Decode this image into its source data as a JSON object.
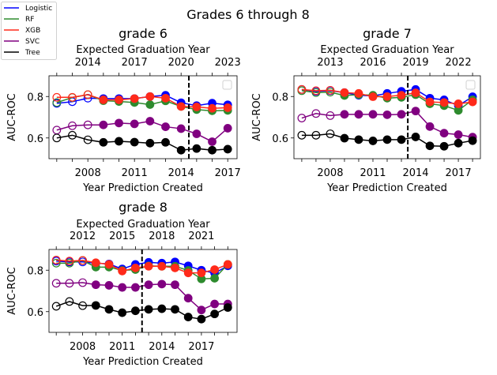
{
  "chart_data": {
    "type": "line",
    "title": "Grades 6 through 8",
    "legend": {
      "placement": "top-left",
      "entries": [
        "Logistic",
        "RF",
        "XGB",
        "SVC",
        "Tree"
      ]
    },
    "colors": {
      "Logistic": "#0000ff",
      "RF": "#2e8b2e",
      "XGB": "#ff2a1a",
      "SVC": "#800080",
      "Tree": "#000000"
    },
    "grid": false,
    "panels": [
      {
        "title": "grade 6",
        "xlabel": "Year Prediction Created",
        "ylabel": "AUC-ROC",
        "top_xlabel": "Expected Graduation Year",
        "top_offset_years": 6,
        "xticks": [
          "2008",
          "2011",
          "2014",
          "2017"
        ],
        "top_xticks": [
          "2014",
          "2017",
          "2020",
          "2023"
        ],
        "yticks": [
          "0.6",
          "0.8"
        ],
        "xlim": [
          2005.5,
          2017.6
        ],
        "ylim": [
          0.5,
          0.9
        ],
        "cutoff_line_x": 2014.5,
        "open_marker_until": 2008,
        "empty_legend_box": true,
        "x": [
          2006,
          2007,
          2008,
          2009,
          2010,
          2011,
          2012,
          2013,
          2014,
          2015,
          2016,
          2017
        ],
        "series": [
          {
            "name": "Logistic",
            "values": [
              0.767,
              0.775,
              0.792,
              0.79,
              0.79,
              0.79,
              0.8,
              0.806,
              0.77,
              0.756,
              0.768,
              0.76
            ]
          },
          {
            "name": "RF",
            "values": [
              0.771,
              0.795,
              0.809,
              0.78,
              0.776,
              0.771,
              0.761,
              0.779,
              0.752,
              0.737,
              0.731,
              0.733
            ]
          },
          {
            "name": "XGB",
            "values": [
              0.796,
              0.796,
              0.809,
              0.784,
              0.784,
              0.79,
              0.8,
              0.792,
              0.752,
              0.75,
              0.743,
              0.746
            ]
          },
          {
            "name": "SVC",
            "values": [
              0.638,
              0.659,
              0.663,
              0.663,
              0.672,
              0.668,
              0.681,
              0.654,
              0.645,
              0.62,
              0.582,
              0.647
            ]
          },
          {
            "name": "Tree",
            "values": [
              0.6,
              0.613,
              0.591,
              0.579,
              0.584,
              0.58,
              0.575,
              0.579,
              0.541,
              0.549,
              0.541,
              0.546
            ]
          }
        ]
      },
      {
        "title": "grade 7",
        "xlabel": "Year Prediction Created",
        "ylabel": "AUC-ROC",
        "top_xlabel": "Expected Graduation Year",
        "top_offset_years": 5,
        "xticks": [
          "2008",
          "2011",
          "2014",
          "2017"
        ],
        "top_xticks": [
          "2013",
          "2016",
          "2019",
          "2022"
        ],
        "yticks": [
          "0.6",
          "0.8"
        ],
        "xlim": [
          2005.45,
          2018.55
        ],
        "ylim": [
          0.5,
          0.9
        ],
        "cutoff_line_x": 2013.45,
        "open_marker_until": 2008,
        "empty_legend_box": true,
        "x": [
          2006,
          2007,
          2008,
          2009,
          2010,
          2011,
          2012,
          2013,
          2014,
          2015,
          2016,
          2017,
          2018
        ],
        "series": [
          {
            "name": "Logistic",
            "values": [
              0.834,
              0.825,
              0.828,
              0.819,
              0.806,
              0.803,
              0.815,
              0.825,
              0.834,
              0.792,
              0.784,
              0.756,
              0.799
            ]
          },
          {
            "name": "RF",
            "values": [
              0.828,
              0.819,
              0.821,
              0.805,
              0.809,
              0.806,
              0.792,
              0.796,
              0.809,
              0.765,
              0.756,
              0.733,
              0.784
            ]
          },
          {
            "name": "XGB",
            "values": [
              0.834,
              0.828,
              0.83,
              0.819,
              0.815,
              0.799,
              0.8,
              0.806,
              0.818,
              0.774,
              0.771,
              0.765,
              0.774
            ]
          },
          {
            "name": "SVC",
            "values": [
              0.696,
              0.718,
              0.708,
              0.714,
              0.714,
              0.714,
              0.712,
              0.714,
              0.73,
              0.655,
              0.623,
              0.616,
              0.604
            ]
          },
          {
            "name": "Tree",
            "values": [
              0.613,
              0.613,
              0.62,
              0.599,
              0.592,
              0.586,
              0.592,
              0.592,
              0.605,
              0.562,
              0.56,
              0.575,
              0.587
            ]
          }
        ]
      },
      {
        "title": "grade 8",
        "xlabel": "Year Prediction Created",
        "ylabel": "AUC-ROC",
        "top_xlabel": "Expected Graduation Year",
        "top_offset_years": 4,
        "xticks": [
          "2008",
          "2011",
          "2014",
          "2017"
        ],
        "top_xticks": [
          "2012",
          "2015",
          "2018",
          "2021"
        ],
        "yticks": [
          "0.6",
          "0.8"
        ],
        "xlim": [
          2005.45,
          2019.7
        ],
        "ylim": [
          0.5,
          0.9
        ],
        "cutoff_line_x": 2012.5,
        "open_marker_until": 2008,
        "empty_legend_box": false,
        "x": [
          2006,
          2007,
          2008,
          2009,
          2010,
          2011,
          2012,
          2013,
          2014,
          2015,
          2016,
          2017,
          2018,
          2019
        ],
        "series": [
          {
            "name": "Logistic",
            "values": [
              0.844,
              0.84,
              0.84,
              0.834,
              0.83,
              0.806,
              0.828,
              0.838,
              0.834,
              0.84,
              0.821,
              0.8,
              0.786,
              0.821
            ]
          },
          {
            "name": "RF",
            "values": [
              0.834,
              0.834,
              0.847,
              0.815,
              0.815,
              0.799,
              0.803,
              0.821,
              0.819,
              0.819,
              0.799,
              0.758,
              0.761,
              0.828
            ]
          },
          {
            "name": "XGB",
            "values": [
              0.849,
              0.844,
              0.847,
              0.836,
              0.828,
              0.796,
              0.811,
              0.819,
              0.819,
              0.811,
              0.787,
              0.787,
              0.803,
              0.828
            ]
          },
          {
            "name": "SVC",
            "values": [
              0.737,
              0.737,
              0.74,
              0.73,
              0.727,
              0.717,
              0.717,
              0.73,
              0.733,
              0.73,
              0.665,
              0.608,
              0.637,
              0.637
            ]
          },
          {
            "name": "Tree",
            "values": [
              0.626,
              0.649,
              0.629,
              0.63,
              0.611,
              0.595,
              0.604,
              0.611,
              0.614,
              0.611,
              0.574,
              0.564,
              0.589,
              0.62
            ]
          }
        ]
      }
    ]
  }
}
